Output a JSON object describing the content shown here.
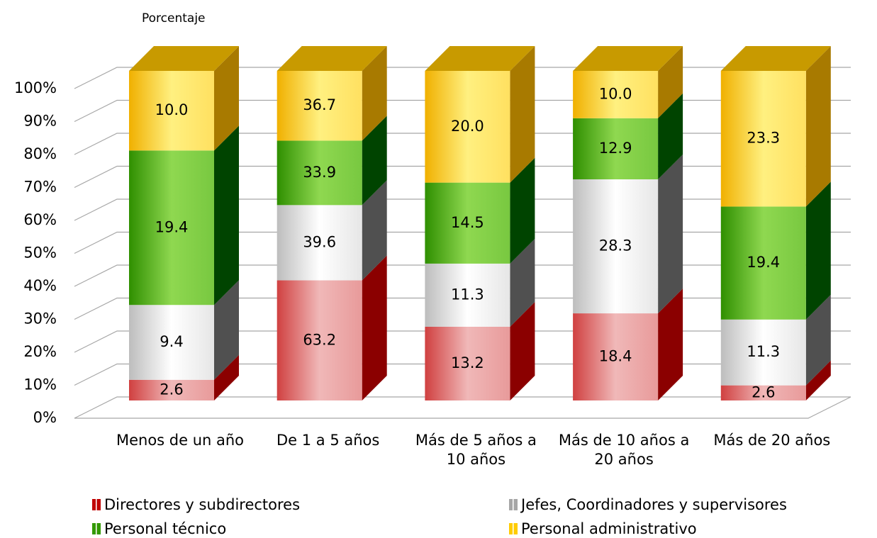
{
  "chart_data": {
    "type": "bar",
    "stacking": "percent",
    "y_label": "Porcentaje",
    "categories": [
      "Menos de un año",
      "De 1 a 5 años",
      "Más de 5 años a 10 años",
      "Más de 10 años a 20 años",
      "Más de 20 años"
    ],
    "series": [
      {
        "name": "Directores y subdirectores",
        "color": "#c00000",
        "values": [
          2.6,
          63.2,
          13.2,
          18.4,
          2.6
        ],
        "value_labels": [
          "2.6",
          "63.2",
          "13.2",
          "18.4",
          "2.6"
        ]
      },
      {
        "name": "Jefes, Coordinadores y supervisores",
        "color": "#a6a6a6",
        "values": [
          9.4,
          39.6,
          11.3,
          28.3,
          11.3
        ],
        "value_labels": [
          "9.4",
          "39.6",
          "11.3",
          "28.3",
          "11.3"
        ]
      },
      {
        "name": "Personal técnico",
        "color": "#339900",
        "values": [
          19.4,
          33.9,
          14.5,
          12.9,
          19.4
        ],
        "value_labels": [
          "19.4",
          "33.9",
          "14.5",
          "12.9",
          "19.4"
        ]
      },
      {
        "name": "Personal administrativo",
        "color": "#ffcc00",
        "values": [
          10.0,
          36.7,
          20.0,
          10.0,
          23.3
        ],
        "value_labels": [
          "10.0",
          "36.7",
          "20.0",
          "10.0",
          "23.3"
        ]
      }
    ],
    "ylim": [
      0,
      100
    ],
    "yticks": [
      {
        "value": 0,
        "label": "0%"
      },
      {
        "value": 10,
        "label": "10%"
      },
      {
        "value": 20,
        "label": "20%"
      },
      {
        "value": 30,
        "label": "30%"
      },
      {
        "value": 40,
        "label": "40%"
      },
      {
        "value": 50,
        "label": "50%"
      },
      {
        "value": 60,
        "label": "60%"
      },
      {
        "value": 70,
        "label": "70%"
      },
      {
        "value": 80,
        "label": "80%"
      },
      {
        "value": 90,
        "label": "90%"
      },
      {
        "value": 100,
        "label": "100%"
      }
    ],
    "grid": true,
    "legend": "bottom"
  }
}
